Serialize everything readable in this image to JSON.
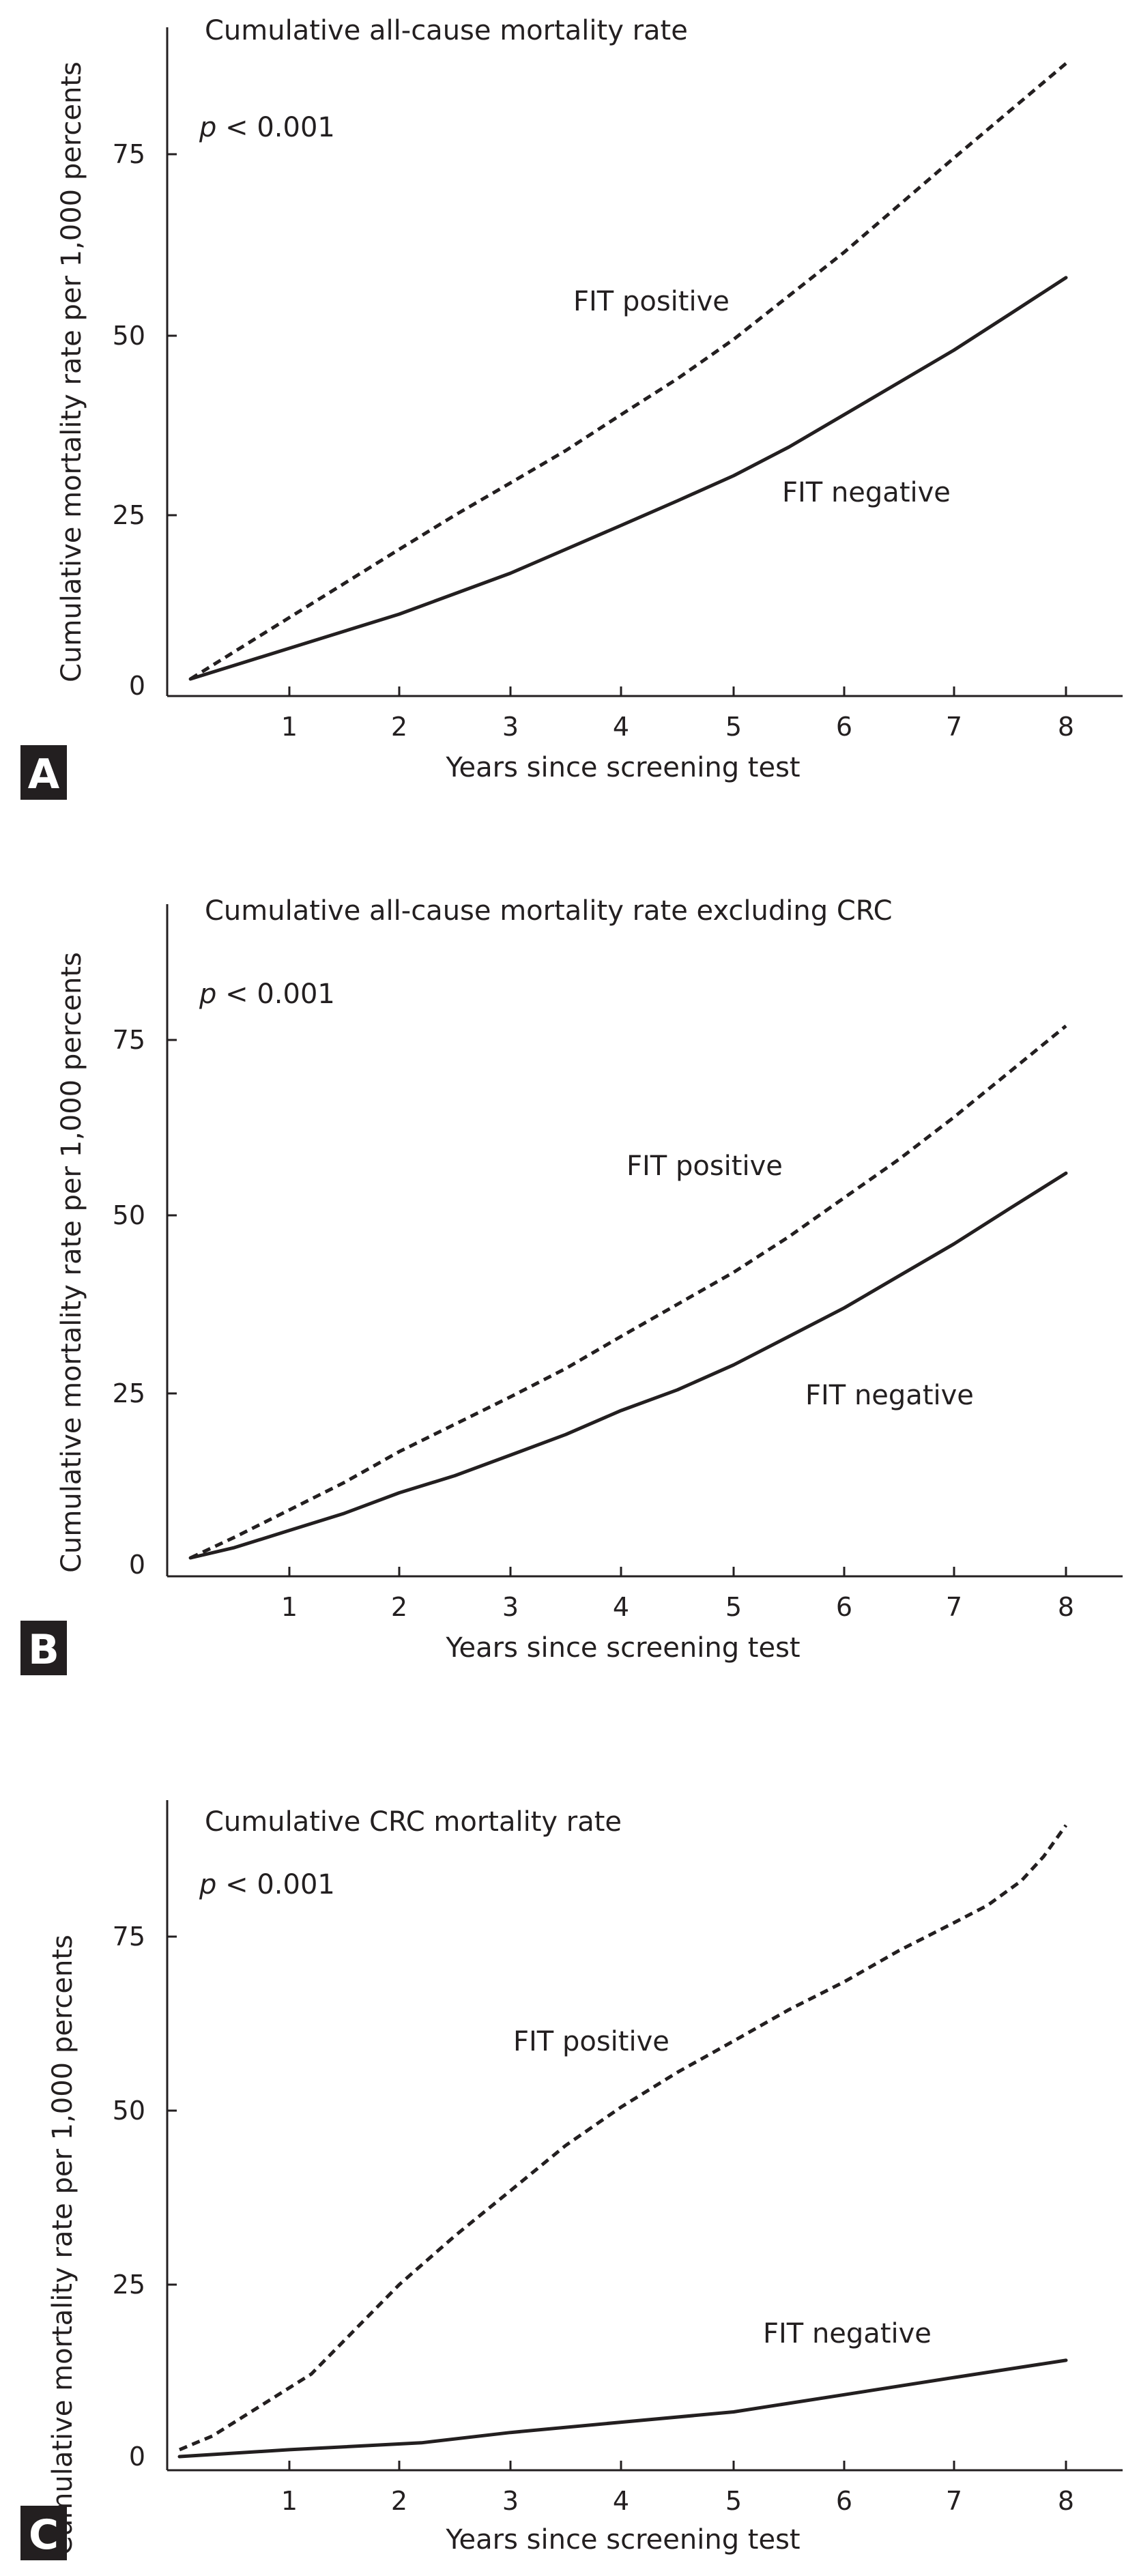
{
  "chart_data": [
    {
      "panel": "A",
      "type": "line",
      "title": "Cumulative all-cause mortality rate",
      "annotation": "p < 0.001",
      "annotation_italic": "p",
      "annotation_rest": " < 0.001",
      "xlabel": "Years since screening test",
      "ylabel": "Cumulative mortality rate per 1,000 percents",
      "xlim": [
        0,
        8.4
      ],
      "ylim": [
        0,
        92
      ],
      "xticks": [
        1,
        2,
        3,
        4,
        5,
        6,
        7,
        8
      ],
      "yticks": [
        0,
        25,
        50,
        75
      ],
      "series": [
        {
          "name": "FIT positive",
          "style": "dashed",
          "x": [
            0.1,
            0.5,
            1,
            1.5,
            2,
            2.5,
            3,
            3.5,
            4,
            4.5,
            5,
            5.5,
            6,
            6.5,
            7,
            7.5,
            8
          ],
          "y": [
            1,
            5,
            10,
            15,
            20,
            25,
            29.5,
            34,
            39,
            44,
            49.5,
            55.5,
            61.5,
            68,
            74.5,
            81,
            87.5
          ]
        },
        {
          "name": "FIT negative",
          "style": "solid",
          "x": [
            0.1,
            0.5,
            1,
            1.5,
            2,
            2.5,
            3,
            3.5,
            4,
            4.5,
            5,
            5.5,
            6,
            6.5,
            7,
            7.5,
            8
          ],
          "y": [
            1,
            3,
            5.5,
            8,
            10.5,
            13.5,
            16.5,
            20,
            23.5,
            27,
            30.5,
            34.5,
            39,
            43.5,
            48,
            53,
            58
          ]
        }
      ]
    },
    {
      "panel": "B",
      "type": "line",
      "title": "Cumulative all-cause mortality rate excluding CRC",
      "annotation": "p < 0.001",
      "annotation_italic": "p",
      "annotation_rest": " < 0.001",
      "xlabel": "Years since screening test",
      "ylabel": "Cumulative mortality rate per 1,000 percents",
      "xlim": [
        0,
        8.4
      ],
      "ylim": [
        0,
        92
      ],
      "xticks": [
        1,
        2,
        3,
        4,
        5,
        6,
        7,
        8
      ],
      "yticks": [
        0,
        25,
        50,
        75
      ],
      "series": [
        {
          "name": "FIT positive",
          "style": "dashed",
          "x": [
            0.1,
            0.5,
            1,
            1.5,
            2,
            2.5,
            3,
            3.5,
            4,
            4.5,
            5,
            5.5,
            6,
            6.5,
            7,
            7.5,
            8
          ],
          "y": [
            1,
            4,
            8,
            12,
            16.5,
            20.5,
            24.5,
            28.5,
            33,
            37.5,
            42,
            47,
            52.5,
            58,
            64,
            70.5,
            77
          ]
        },
        {
          "name": "FIT negative",
          "style": "solid",
          "x": [
            0.1,
            0.5,
            1,
            1.5,
            2,
            2.5,
            3,
            3.5,
            4,
            4.5,
            5,
            5.5,
            6,
            6.5,
            7,
            7.5,
            8
          ],
          "y": [
            1,
            2.5,
            5,
            7.5,
            10.5,
            13,
            16,
            19,
            22.5,
            25.5,
            29,
            33,
            37,
            41.5,
            46,
            51,
            56
          ]
        }
      ]
    },
    {
      "panel": "C",
      "type": "line",
      "title": "Cumulative CRC mortality rate",
      "annotation": "p < 0.001",
      "annotation_italic": "p",
      "annotation_rest": " < 0.001",
      "xlabel": "Years since screening test",
      "ylabel": "Cumulative mortality rate per 1,000 percents",
      "xlim": [
        0,
        8.4
      ],
      "ylim": [
        0,
        92
      ],
      "xticks": [
        1,
        2,
        3,
        4,
        5,
        6,
        7,
        8
      ],
      "yticks": [
        0,
        25,
        50,
        75
      ],
      "series": [
        {
          "name": "FIT positive",
          "style": "dashed",
          "x": [
            0,
            0.3,
            0.6,
            0.9,
            1.2,
            1.6,
            2,
            2.5,
            3,
            3.5,
            4,
            4.5,
            5,
            5.5,
            6,
            6.5,
            7,
            7.3,
            7.6,
            7.8,
            8
          ],
          "y": [
            1,
            3,
            6,
            9,
            12,
            18.5,
            25,
            32,
            38.5,
            45,
            50.5,
            55.5,
            60,
            64.5,
            68.5,
            73,
            77,
            79.5,
            83,
            86.5,
            91
          ]
        },
        {
          "name": "FIT negative",
          "style": "solid",
          "x": [
            0,
            1,
            2.2,
            3,
            4,
            5,
            6,
            7,
            8
          ],
          "y": [
            0,
            1,
            2,
            3.5,
            5,
            6.5,
            9,
            11.5,
            14
          ]
        }
      ]
    }
  ]
}
